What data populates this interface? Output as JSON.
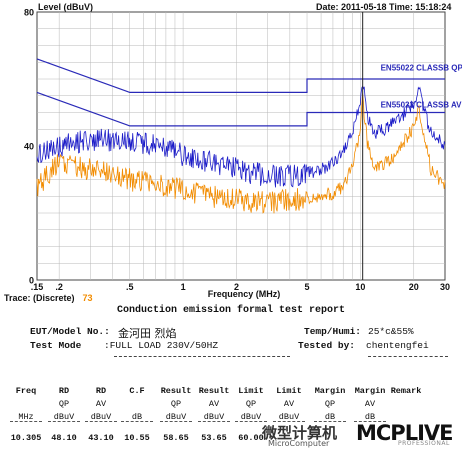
{
  "chart_data": {
    "type": "line",
    "title": "Level (dBuV)",
    "date_text": "Date: 2011-05-18  Time: 15:18:24",
    "xlabel": "Frequency (MHz)",
    "ylabel": "Level (dBuV)",
    "x_scale": "log",
    "xlim": [
      0.15,
      30
    ],
    "ylim": [
      0,
      80
    ],
    "y_ticks": [
      "80",
      "40",
      "0"
    ],
    "x_ticks": [
      ".15",
      ".2",
      ".5",
      "1",
      "2",
      "5",
      "10",
      "20",
      "30"
    ],
    "grid": true,
    "series": [
      {
        "name": "EN55022 CLASSB QP",
        "color": "#2a2ab8",
        "x": [
          0.15,
          0.5,
          0.5,
          5,
          5,
          30
        ],
        "y": [
          66,
          56,
          56,
          56,
          60,
          60
        ]
      },
      {
        "name": "EN55022 CLASSB AV",
        "color": "#2a2ab8",
        "x": [
          0.15,
          0.5,
          0.5,
          5,
          5,
          30
        ],
        "y": [
          56,
          46,
          46,
          46,
          50,
          50
        ]
      },
      {
        "name": "",
        "color": "#1c1cc8",
        "x": [
          0.15,
          0.2,
          0.3,
          0.5,
          0.8,
          1,
          1.5,
          2,
          3,
          4,
          5,
          6,
          7,
          8,
          9,
          10,
          10.3,
          11,
          12,
          14,
          16,
          18,
          20,
          21.5,
          23,
          25,
          30
        ],
        "y": [
          37,
          40,
          42,
          41,
          40,
          37,
          35,
          33,
          31,
          31,
          32,
          33,
          35,
          39,
          44,
          53,
          59,
          49,
          44,
          45,
          48,
          50,
          53,
          58,
          50,
          44,
          40
        ]
      },
      {
        "name": "",
        "color": "#f28c00",
        "x": [
          0.15,
          0.2,
          0.3,
          0.5,
          0.8,
          1,
          1.5,
          2,
          3,
          4,
          5,
          6,
          7,
          8,
          9,
          10,
          10.3,
          11,
          12,
          14,
          16,
          18,
          20,
          21.5,
          23,
          25,
          30
        ],
        "y": [
          27,
          36,
          33,
          30,
          28,
          27,
          25,
          24,
          23,
          24,
          24,
          25,
          26,
          28,
          34,
          44,
          54,
          40,
          34,
          35,
          38,
          42,
          46,
          51,
          43,
          33,
          28
        ]
      }
    ],
    "annotations": [
      "EN55022 CLASSB QP",
      "EN55022 CLASSB AV"
    ],
    "marker_x": 10.3
  },
  "trace": {
    "label": "Trace: (Discrete)",
    "number": "73"
  },
  "report": {
    "title": "Conduction emission formal test report",
    "eut_label": "EUT/Model No.:",
    "eut_value": "金河田 烈焰",
    "temp_label": "Temp/Humi:",
    "temp_value": "25*c&55%",
    "mode_label": "Test Mode",
    "mode_value": ":FULL LOAD 230V/50HZ",
    "tested_label": "Tested by:",
    "tested_value": "chentengfei",
    "columns": [
      {
        "h1": "Freq",
        "h2": "",
        "unit": "MHz",
        "val": "10.305"
      },
      {
        "h1": "RD",
        "h2": "QP",
        "unit": "dBuV",
        "val": "48.10"
      },
      {
        "h1": "RD",
        "h2": "AV",
        "unit": "dBuV",
        "val": "43.10"
      },
      {
        "h1": "C.F",
        "h2": "",
        "unit": "dB",
        "val": "10.55"
      },
      {
        "h1": "Result",
        "h2": "QP",
        "unit": "dBuV",
        "val": "58.65"
      },
      {
        "h1": "Result",
        "h2": "AV",
        "unit": "dBuV",
        "val": "53.65"
      },
      {
        "h1": "Limit",
        "h2": "QP",
        "unit": "dBuV",
        "val": "60.00"
      },
      {
        "h1": "Limit",
        "h2": "AV",
        "unit": "dBuV",
        "val": ""
      },
      {
        "h1": "Margin",
        "h2": "QP",
        "unit": "dB",
        "val": ""
      },
      {
        "h1": "Margin",
        "h2": "AV",
        "unit": "dB",
        "val": ""
      },
      {
        "h1": "Remark",
        "h2": "",
        "unit": "",
        "val": ""
      }
    ]
  },
  "watermark": {
    "cn": "微型计算机",
    "en": "MicroComputer",
    "brand": "MCPLIVE",
    "sub": "PROFESSIONAL"
  },
  "colors": {
    "limit": "#2a2ab8",
    "qp_trace": "#1c1cc8",
    "av_trace": "#f28c00",
    "grid": "#b8b8b8"
  }
}
